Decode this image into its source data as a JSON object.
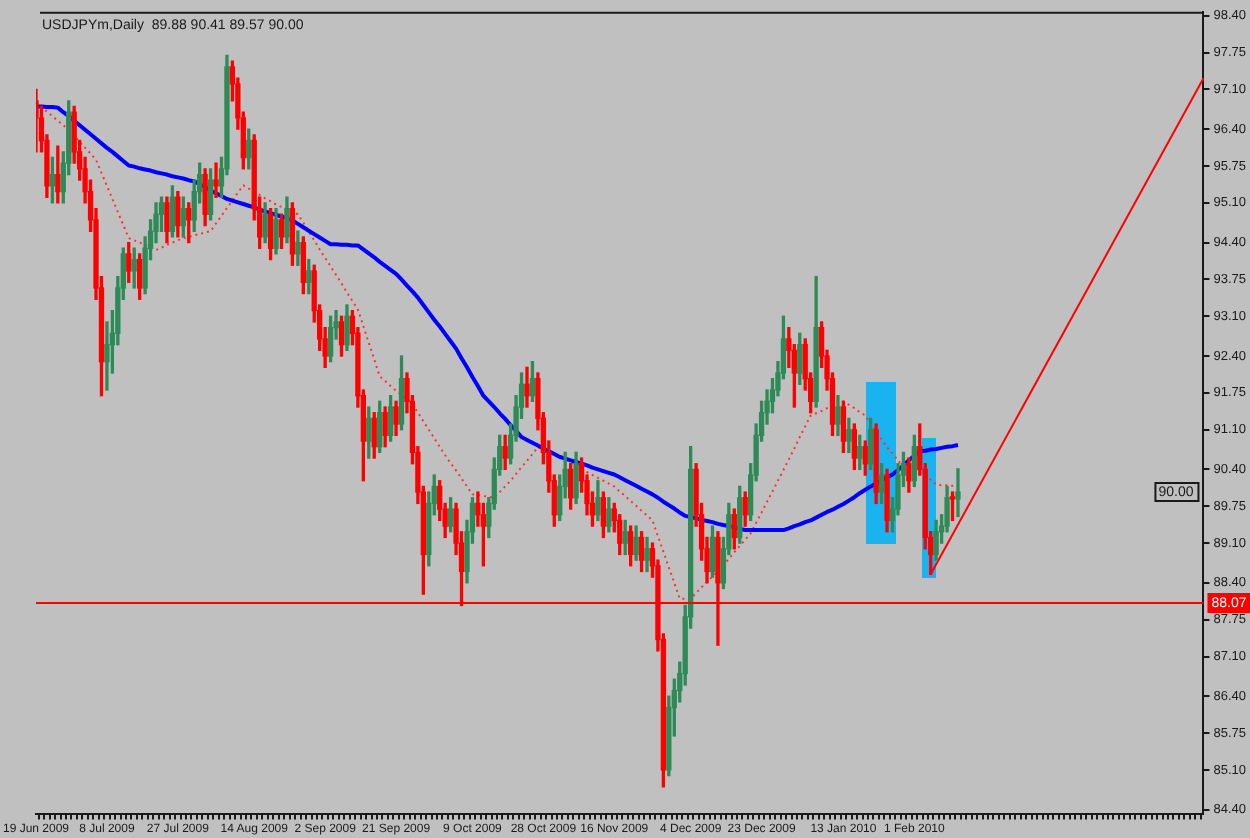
{
  "chart_data": {
    "type": "candlestick",
    "title": "USDJPYm,Daily  89.88 90.41 89.57 90.00",
    "categories": [
      "19 Jun 2009",
      null,
      null,
      null,
      null,
      null,
      null,
      null,
      null,
      null,
      null,
      null,
      null,
      "8 Jul 2009",
      null,
      null,
      null,
      null,
      null,
      null,
      null,
      null,
      null,
      null,
      null,
      null,
      "27 Jul 2009",
      null,
      null,
      null,
      null,
      null,
      null,
      null,
      null,
      null,
      null,
      null,
      null,
      null,
      "14 Aug 2009",
      null,
      null,
      null,
      null,
      null,
      null,
      null,
      null,
      null,
      null,
      null,
      null,
      "2 Sep 2009",
      null,
      null,
      null,
      null,
      null,
      null,
      null,
      null,
      null,
      null,
      null,
      null,
      "21 Sep 2009",
      null,
      null,
      null,
      null,
      null,
      null,
      null,
      null,
      null,
      null,
      null,
      null,
      null,
      "9 Oct 2009",
      null,
      null,
      null,
      null,
      null,
      null,
      null,
      null,
      null,
      null,
      null,
      null,
      "28 Oct 2009",
      null,
      null,
      null,
      null,
      null,
      null,
      null,
      null,
      null,
      null,
      null,
      null,
      "16 Nov 2009",
      null,
      null,
      null,
      null,
      null,
      null,
      null,
      null,
      null,
      null,
      null,
      null,
      null,
      "4 Dec 2009",
      null,
      null,
      null,
      null,
      null,
      null,
      null,
      null,
      null,
      null,
      null,
      null,
      "23 Dec 2009",
      null,
      null,
      null,
      null,
      null,
      null,
      null,
      null,
      null,
      null,
      null,
      null,
      null,
      null,
      "13 Jan 2010",
      null,
      null,
      null,
      null,
      null,
      null,
      null,
      null,
      null,
      null,
      null,
      null,
      "1 Feb 2010",
      null,
      null,
      null,
      null,
      null,
      null,
      null,
      null,
      null,
      null,
      null,
      null,
      null,
      null,
      null,
      null,
      null,
      null,
      null,
      null,
      null,
      null,
      null,
      null,
      null,
      null,
      null,
      null,
      null,
      null,
      null,
      null,
      null,
      null,
      null,
      null,
      null,
      null,
      null,
      null,
      null,
      null,
      null,
      null,
      null,
      null,
      null,
      null,
      null,
      null,
      null,
      null,
      null
    ],
    "ohlc": [
      [
        96.9,
        97.1,
        96.0,
        96.6
      ],
      [
        96.6,
        96.8,
        96.0,
        96.2
      ],
      [
        96.2,
        96.3,
        95.2,
        95.4
      ],
      [
        95.4,
        95.9,
        95.1,
        95.6
      ],
      [
        95.6,
        96.1,
        95.1,
        95.3
      ],
      [
        95.3,
        96.0,
        95.1,
        95.8
      ],
      [
        95.8,
        96.9,
        95.6,
        96.7
      ],
      [
        96.7,
        96.8,
        95.8,
        96.0
      ],
      [
        96.0,
        96.2,
        95.5,
        95.7
      ],
      [
        95.7,
        95.9,
        95.1,
        95.3
      ],
      [
        95.3,
        95.5,
        94.6,
        94.8
      ],
      [
        94.8,
        95.0,
        93.4,
        93.6
      ],
      [
        93.6,
        93.8,
        91.7,
        92.3
      ],
      [
        92.3,
        93.0,
        91.8,
        92.6
      ],
      [
        92.6,
        93.2,
        92.1,
        92.8
      ],
      [
        92.8,
        93.8,
        92.6,
        93.6
      ],
      [
        93.6,
        94.3,
        93.4,
        94.2
      ],
      [
        94.2,
        94.4,
        93.7,
        93.9
      ],
      [
        93.9,
        94.3,
        93.6,
        94.1
      ],
      [
        94.1,
        94.2,
        93.4,
        93.6
      ],
      [
        93.6,
        94.5,
        93.5,
        94.3
      ],
      [
        94.3,
        94.8,
        94.1,
        94.6
      ],
      [
        94.6,
        95.1,
        94.4,
        94.9
      ],
      [
        94.9,
        95.2,
        94.6,
        95.1
      ],
      [
        95.1,
        95.2,
        94.4,
        94.6
      ],
      [
        94.6,
        95.4,
        94.5,
        95.2
      ],
      [
        95.2,
        95.3,
        94.5,
        94.7
      ],
      [
        94.7,
        95.2,
        94.5,
        95.0
      ],
      [
        95.0,
        95.1,
        94.4,
        94.8
      ],
      [
        94.8,
        95.5,
        94.6,
        95.3
      ],
      [
        95.3,
        95.8,
        95.1,
        95.6
      ],
      [
        95.6,
        95.7,
        94.7,
        94.9
      ],
      [
        94.9,
        95.7,
        94.8,
        95.5
      ],
      [
        95.5,
        95.8,
        95.2,
        95.4
      ],
      [
        95.4,
        95.9,
        95.2,
        95.7
      ],
      [
        95.7,
        97.7,
        95.6,
        97.5
      ],
      [
        97.5,
        97.6,
        96.9,
        97.2
      ],
      [
        97.2,
        97.3,
        96.4,
        96.6
      ],
      [
        96.6,
        96.7,
        95.7,
        95.9
      ],
      [
        95.9,
        96.4,
        95.7,
        96.2
      ],
      [
        96.2,
        96.3,
        94.8,
        95.0
      ],
      [
        95.0,
        95.2,
        94.3,
        94.5
      ],
      [
        94.5,
        95.1,
        94.4,
        94.9
      ],
      [
        94.9,
        95.0,
        94.1,
        94.3
      ],
      [
        94.3,
        95.0,
        94.2,
        94.8
      ],
      [
        94.8,
        94.9,
        94.3,
        94.5
      ],
      [
        94.5,
        95.2,
        94.4,
        95.0
      ],
      [
        95.0,
        95.1,
        94.0,
        94.2
      ],
      [
        94.2,
        94.6,
        94.0,
        94.4
      ],
      [
        94.4,
        94.5,
        93.5,
        93.7
      ],
      [
        93.7,
        94.1,
        93.5,
        93.9
      ],
      [
        93.9,
        94.0,
        93.0,
        93.2
      ],
      [
        93.2,
        93.3,
        92.5,
        92.7
      ],
      [
        92.7,
        92.9,
        92.2,
        92.4
      ],
      [
        92.4,
        93.1,
        92.3,
        92.9
      ],
      [
        92.9,
        93.2,
        92.7,
        93.0
      ],
      [
        93.0,
        93.1,
        92.4,
        92.6
      ],
      [
        92.6,
        93.3,
        92.5,
        93.1
      ],
      [
        93.1,
        93.2,
        92.6,
        92.8
      ],
      [
        92.8,
        92.9,
        91.5,
        91.7
      ],
      [
        91.7,
        91.8,
        90.2,
        90.9
      ],
      [
        90.9,
        91.5,
        90.6,
        91.3
      ],
      [
        91.3,
        91.4,
        90.6,
        90.8
      ],
      [
        90.8,
        91.6,
        90.7,
        91.4
      ],
      [
        91.4,
        91.5,
        90.8,
        91.0
      ],
      [
        91.0,
        91.7,
        90.9,
        91.5
      ],
      [
        91.5,
        91.6,
        91.0,
        91.2
      ],
      [
        91.2,
        92.4,
        91.1,
        92.0
      ],
      [
        92.0,
        92.1,
        91.4,
        91.6
      ],
      [
        91.6,
        91.7,
        90.5,
        90.7
      ],
      [
        90.7,
        90.8,
        89.8,
        90.0
      ],
      [
        90.0,
        90.1,
        88.2,
        88.9
      ],
      [
        88.9,
        90.0,
        88.7,
        89.8
      ],
      [
        89.8,
        90.3,
        89.6,
        90.1
      ],
      [
        90.1,
        90.2,
        89.5,
        89.7
      ],
      [
        89.7,
        89.8,
        89.2,
        89.4
      ],
      [
        89.4,
        89.9,
        89.3,
        89.7
      ],
      [
        89.7,
        89.8,
        88.9,
        89.1
      ],
      [
        89.1,
        89.3,
        88.0,
        88.6
      ],
      [
        88.6,
        89.5,
        88.4,
        89.3
      ],
      [
        89.3,
        89.9,
        89.1,
        89.8
      ],
      [
        89.8,
        90.0,
        89.4,
        89.6
      ],
      [
        89.6,
        89.8,
        88.7,
        89.4
      ],
      [
        89.4,
        89.9,
        89.2,
        89.8
      ],
      [
        89.8,
        90.6,
        89.7,
        90.4
      ],
      [
        90.4,
        91.0,
        90.3,
        90.8
      ],
      [
        90.8,
        91.0,
        90.4,
        90.6
      ],
      [
        90.6,
        91.2,
        90.5,
        91.0
      ],
      [
        91.0,
        91.7,
        90.9,
        91.5
      ],
      [
        91.5,
        92.1,
        91.3,
        91.9
      ],
      [
        91.9,
        92.2,
        91.5,
        91.7
      ],
      [
        91.7,
        92.3,
        91.6,
        92.0
      ],
      [
        92.0,
        92.1,
        91.1,
        91.3
      ],
      [
        91.3,
        91.4,
        90.5,
        90.7
      ],
      [
        90.7,
        90.9,
        90.0,
        90.2
      ],
      [
        90.2,
        90.3,
        89.4,
        89.6
      ],
      [
        89.6,
        90.3,
        89.5,
        90.1
      ],
      [
        90.1,
        90.7,
        89.9,
        90.4
      ],
      [
        90.4,
        90.5,
        89.7,
        89.9
      ],
      [
        89.9,
        90.7,
        89.8,
        90.5
      ],
      [
        90.5,
        90.6,
        90.0,
        90.2
      ],
      [
        90.2,
        90.3,
        89.6,
        89.8
      ],
      [
        89.8,
        90.0,
        89.4,
        89.6
      ],
      [
        89.6,
        90.2,
        89.5,
        89.9
      ],
      [
        89.9,
        90.0,
        89.2,
        89.4
      ],
      [
        89.4,
        89.9,
        89.3,
        89.7
      ],
      [
        89.7,
        89.8,
        89.3,
        89.5
      ],
      [
        89.5,
        89.6,
        88.9,
        89.1
      ],
      [
        89.1,
        89.5,
        88.9,
        89.3
      ],
      [
        89.3,
        89.4,
        88.7,
        88.9
      ],
      [
        88.9,
        89.4,
        88.8,
        89.2
      ],
      [
        89.2,
        89.3,
        88.6,
        88.8
      ],
      [
        88.8,
        89.2,
        88.6,
        89.0
      ],
      [
        89.0,
        89.1,
        88.5,
        88.7
      ],
      [
        88.7,
        88.8,
        87.2,
        87.4
      ],
      [
        87.4,
        87.5,
        84.8,
        85.1
      ],
      [
        85.1,
        86.4,
        85.0,
        86.2
      ],
      [
        86.2,
        86.7,
        85.7,
        86.5
      ],
      [
        86.5,
        87.0,
        86.3,
        86.8
      ],
      [
        86.8,
        88.0,
        86.6,
        87.8
      ],
      [
        87.8,
        90.8,
        87.6,
        90.4
      ],
      [
        90.4,
        90.5,
        89.4,
        89.6
      ],
      [
        89.6,
        89.8,
        88.8,
        89.0
      ],
      [
        89.0,
        89.2,
        88.4,
        88.6
      ],
      [
        88.6,
        89.4,
        88.5,
        89.2
      ],
      [
        89.2,
        89.3,
        87.3,
        88.4
      ],
      [
        88.4,
        89.2,
        88.3,
        89.0
      ],
      [
        89.0,
        89.8,
        88.9,
        89.6
      ],
      [
        89.6,
        89.7,
        89.0,
        89.2
      ],
      [
        89.2,
        90.1,
        89.1,
        89.9
      ],
      [
        89.9,
        90.0,
        89.4,
        89.6
      ],
      [
        89.6,
        90.5,
        89.5,
        90.3
      ],
      [
        90.3,
        91.2,
        90.2,
        91.0
      ],
      [
        91.0,
        91.6,
        90.9,
        91.4
      ],
      [
        91.4,
        91.8,
        91.2,
        91.6
      ],
      [
        91.6,
        92.0,
        91.4,
        91.8
      ],
      [
        91.8,
        92.3,
        91.7,
        92.1
      ],
      [
        92.1,
        93.1,
        92.0,
        92.7
      ],
      [
        92.7,
        92.9,
        92.2,
        92.5
      ],
      [
        92.5,
        92.6,
        91.5,
        92.1
      ],
      [
        92.1,
        92.8,
        91.9,
        92.6
      ],
      [
        92.6,
        92.7,
        91.8,
        92.0
      ],
      [
        92.0,
        92.1,
        91.4,
        91.6
      ],
      [
        91.6,
        93.8,
        91.5,
        92.9
      ],
      [
        92.9,
        93.0,
        92.2,
        92.4
      ],
      [
        92.4,
        92.5,
        91.8,
        92.0
      ],
      [
        92.0,
        92.1,
        91.0,
        91.2
      ],
      [
        91.2,
        91.7,
        91.0,
        91.5
      ],
      [
        91.5,
        91.6,
        90.7,
        90.9
      ],
      [
        90.9,
        91.3,
        90.7,
        91.1
      ],
      [
        91.1,
        91.2,
        90.4,
        90.6
      ],
      [
        90.6,
        91.0,
        90.4,
        90.8
      ],
      [
        90.8,
        90.9,
        90.3,
        90.5
      ],
      [
        90.5,
        91.3,
        90.4,
        91.1
      ],
      [
        91.1,
        91.2,
        89.8,
        90.0
      ],
      [
        90.0,
        90.5,
        89.8,
        90.3
      ],
      [
        90.3,
        90.4,
        89.3,
        89.5
      ],
      [
        89.5,
        89.9,
        89.3,
        89.7
      ],
      [
        89.7,
        90.5,
        89.6,
        90.3
      ],
      [
        90.3,
        90.7,
        90.1,
        90.5
      ],
      [
        90.5,
        90.6,
        90.0,
        90.2
      ],
      [
        90.2,
        91.0,
        90.1,
        90.8
      ],
      [
        90.8,
        91.2,
        90.3,
        90.4
      ],
      [
        90.4,
        90.5,
        89.0,
        89.2
      ],
      [
        89.2,
        89.3,
        88.55,
        88.9
      ],
      [
        88.9,
        89.5,
        88.8,
        89.3
      ],
      [
        89.3,
        89.6,
        89.1,
        89.4
      ],
      [
        89.4,
        90.1,
        89.3,
        89.9
      ],
      [
        89.9,
        90.0,
        89.5,
        89.88
      ],
      [
        89.88,
        90.41,
        89.57,
        90.0
      ],
      null,
      null,
      null,
      null,
      null,
      null,
      null,
      null,
      null,
      null,
      null,
      null,
      null,
      null,
      null,
      null,
      null,
      null,
      null,
      null,
      null,
      null,
      null,
      null,
      null,
      null,
      null,
      null,
      null,
      null,
      null,
      null,
      null,
      null,
      null,
      null,
      null,
      null,
      null,
      null,
      null,
      null,
      null,
      null,
      null
    ],
    "colors": [
      "#ff0000",
      "#ff0000",
      "#ff0000",
      "#2e8b57",
      "#ff0000",
      "#2e8b57",
      "#2e8b57",
      "#ff0000",
      "#ff0000",
      "#ff0000",
      "#ff0000",
      "#ff0000",
      "#ff0000",
      "#2e8b57",
      "#2e8b57",
      "#2e8b57",
      "#2e8b57",
      "#ff0000",
      "#2e8b57",
      "#ff0000",
      "#2e8b57",
      "#2e8b57",
      "#2e8b57",
      "#2e8b57",
      "#ff0000",
      "#2e8b57",
      "#ff0000",
      "#2e8b57",
      "#ff0000",
      "#2e8b57",
      "#2e8b57",
      "#ff0000",
      "#2e8b57",
      "#ff0000",
      "#2e8b57",
      "#2e8b57",
      "#ff0000",
      "#ff0000",
      "#ff0000",
      "#2e8b57",
      "#ff0000",
      "#ff0000",
      "#2e8b57",
      "#ff0000",
      "#2e8b57",
      "#ff0000",
      "#2e8b57",
      "#ff0000",
      "#2e8b57",
      "#ff0000",
      "#2e8b57",
      "#ff0000",
      "#ff0000",
      "#ff0000",
      "#2e8b57",
      "#2e8b57",
      "#ff0000",
      "#2e8b57",
      "#ff0000",
      "#ff0000",
      "#ff0000",
      "#2e8b57",
      "#ff0000",
      "#2e8b57",
      "#ff0000",
      "#2e8b57",
      "#ff0000",
      "#2e8b57",
      "#ff0000",
      "#ff0000",
      "#ff0000",
      "#ff0000",
      "#2e8b57",
      "#2e8b57",
      "#ff0000",
      "#ff0000",
      "#2e8b57",
      "#ff0000",
      "#ff0000",
      "#2e8b57",
      "#2e8b57",
      "#ff0000",
      "#ff0000",
      "#2e8b57",
      "#2e8b57",
      "#2e8b57",
      "#ff0000",
      "#2e8b57",
      "#2e8b57",
      "#2e8b57",
      "#ff0000",
      "#2e8b57",
      "#ff0000",
      "#ff0000",
      "#ff0000",
      "#ff0000",
      "#2e8b57",
      "#2e8b57",
      "#ff0000",
      "#2e8b57",
      "#ff0000",
      "#ff0000",
      "#ff0000",
      "#2e8b57",
      "#ff0000",
      "#2e8b57",
      "#ff0000",
      "#ff0000",
      "#2e8b57",
      "#ff0000",
      "#2e8b57",
      "#ff0000",
      "#2e8b57",
      "#ff0000",
      "#ff0000",
      "#ff0000",
      "#2e8b57",
      "#2e8b57",
      "#2e8b57",
      "#2e8b57",
      "#2e8b57",
      "#ff0000",
      "#ff0000",
      "#ff0000",
      "#2e8b57",
      "#ff0000",
      "#2e8b57",
      "#2e8b57",
      "#ff0000",
      "#2e8b57",
      "#ff0000",
      "#2e8b57",
      "#2e8b57",
      "#2e8b57",
      "#2e8b57",
      "#2e8b57",
      "#2e8b57",
      "#2e8b57",
      "#ff0000",
      "#ff0000",
      "#2e8b57",
      "#ff0000",
      "#ff0000",
      "#2e8b57",
      "#ff0000",
      "#ff0000",
      "#ff0000",
      "#2e8b57",
      "#ff0000",
      "#2e8b57",
      "#ff0000",
      "#2e8b57",
      "#ff0000",
      "#2e8b57",
      "#ff0000",
      "#2e8b57",
      "#ff0000",
      "#2e8b57",
      "#2e8b57",
      "#2e8b57",
      "#ff0000",
      "#2e8b57",
      "#ff0000",
      "#ff0000",
      "#ff0000",
      "#2e8b57",
      "#2e8b57",
      "#2e8b57",
      "#ff0000",
      "#2e8b57",
      null,
      null,
      null,
      null,
      null,
      null,
      null,
      null,
      null,
      null,
      null,
      null,
      null,
      null,
      null,
      null,
      null,
      null,
      null,
      null,
      null,
      null,
      null,
      null,
      null,
      null,
      null,
      null,
      null,
      null,
      null,
      null,
      null,
      null,
      null,
      null,
      null,
      null,
      null,
      null,
      null,
      null,
      null,
      null,
      null
    ],
    "series": [
      {
        "type": "line",
        "color": "#0000ff",
        "values": [
          96.8,
          96.8,
          96.79,
          96.79,
          96.78,
          96.7,
          96.63,
          96.55,
          96.47,
          96.39,
          96.31,
          96.23,
          96.15,
          96.07,
          96.0,
          95.92,
          95.84,
          95.76,
          95.74,
          95.71,
          95.69,
          95.67,
          95.64,
          95.62,
          95.6,
          95.57,
          95.55,
          95.53,
          95.5,
          95.48,
          95.43,
          95.38,
          95.32,
          95.27,
          95.22,
          95.17,
          95.14,
          95.11,
          95.08,
          95.05,
          95.02,
          94.98,
          94.95,
          94.92,
          94.89,
          94.86,
          94.83,
          94.79,
          94.73,
          94.67,
          94.61,
          94.55,
          94.49,
          94.43,
          94.37,
          94.37,
          94.36,
          94.36,
          94.35,
          94.35,
          94.28,
          94.21,
          94.14,
          94.06,
          93.99,
          93.92,
          93.85,
          93.75,
          93.64,
          93.54,
          93.43,
          93.3,
          93.17,
          93.04,
          92.92,
          92.79,
          92.66,
          92.53,
          92.36,
          92.2,
          92.03,
          91.87,
          91.7,
          91.6,
          91.5,
          91.39,
          91.29,
          91.18,
          91.08,
          90.97,
          90.92,
          90.87,
          90.82,
          90.77,
          90.72,
          90.67,
          90.62,
          90.59,
          90.56,
          90.53,
          90.5,
          90.47,
          90.43,
          90.4,
          90.37,
          90.34,
          90.31,
          90.26,
          90.21,
          90.16,
          90.11,
          90.06,
          90.01,
          89.96,
          89.9,
          89.83,
          89.77,
          89.71,
          89.64,
          89.58,
          89.56,
          89.54,
          89.51,
          89.49,
          89.47,
          89.44,
          89.42,
          89.4,
          89.38,
          89.35,
          89.33,
          89.33,
          89.33,
          89.33,
          89.33,
          89.33,
          89.33,
          89.33,
          89.36,
          89.4,
          89.43,
          89.47,
          89.5,
          89.55,
          89.6,
          89.65,
          89.69,
          89.74,
          89.79,
          89.85,
          89.91,
          89.98,
          90.04,
          90.1,
          90.15,
          null,
          90.26,
          90.31,
          90.39,
          90.47,
          90.56,
          90.64,
          90.72,
          90.73,
          90.75,
          90.76,
          90.78,
          90.8,
          90.81,
          90.83,
          null,
          null,
          null,
          null,
          null,
          null,
          null,
          null,
          null,
          null,
          null,
          null,
          null,
          null,
          null,
          null,
          null,
          null,
          null,
          null,
          null,
          null,
          null,
          null,
          null,
          null,
          null,
          null,
          null,
          null,
          null,
          null,
          null,
          null,
          null,
          null,
          null,
          null,
          null,
          null,
          null,
          null,
          null,
          null,
          null
        ]
      },
      {
        "type": "line",
        "color": "#ff3030",
        "line_style": "dotted",
        "values": [
          96.87,
          96.79,
          96.71,
          96.63,
          96.55,
          96.47,
          96.39,
          96.28,
          96.18,
          96.07,
          95.97,
          95.86,
          95.63,
          95.4,
          95.17,
          94.94,
          94.71,
          94.48,
          94.44,
          94.4,
          94.36,
          94.31,
          94.27,
          94.31,
          94.36,
          94.4,
          94.44,
          94.48,
          94.5,
          94.53,
          94.55,
          94.58,
          94.6,
          94.74,
          94.87,
          95.01,
          95.14,
          95.28,
          95.41,
          95.35,
          95.3,
          95.24,
          95.18,
          95.13,
          95.07,
          95.03,
          94.99,
          94.94,
          94.9,
          94.75,
          94.59,
          94.44,
          94.28,
          94.13,
          93.98,
          93.83,
          93.68,
          93.52,
          93.37,
          93.22,
          92.93,
          92.63,
          92.34,
          92.04,
          91.96,
          91.87,
          91.79,
          91.71,
          91.63,
          91.55,
          91.4,
          91.25,
          91.1,
          90.95,
          90.8,
          90.65,
          90.51,
          90.38,
          90.24,
          90.1,
          89.96,
          89.95,
          89.93,
          89.92,
          89.9,
          90.0,
          90.1,
          90.2,
          90.32,
          90.44,
          90.55,
          90.67,
          90.79,
          90.75,
          90.72,
          90.68,
          90.65,
          90.59,
          90.53,
          90.46,
          90.4,
          90.35,
          90.3,
          90.25,
          90.2,
          90.15,
          90.1,
          90.01,
          89.93,
          89.84,
          89.76,
          89.67,
          89.59,
          89.5,
          89.22,
          88.95,
          88.67,
          88.4,
          88.12,
          88.12,
          88.12,
          88.22,
          88.32,
          88.42,
          88.51,
          88.61,
          88.71,
          88.82,
          88.94,
          89.05,
          89.16,
          89.27,
          89.46,
          89.64,
          89.83,
          90.01,
          90.2,
          90.39,
          90.58,
          90.77,
          90.97,
          91.16,
          91.35,
          91.39,
          91.43,
          91.48,
          91.52,
          91.56,
          91.6,
          91.54,
          91.48,
          91.41,
          91.35,
          91.21,
          91.07,
          90.93,
          90.79,
          90.68,
          90.56,
          90.45,
          90.41,
          90.38,
          90.34,
          90.3,
          90.22,
          90.13,
          90.12,
          90.12,
          90.11,
          90.1,
          null,
          null,
          null,
          null,
          null,
          null,
          null,
          null,
          null,
          null,
          null,
          null,
          null,
          null,
          null,
          null,
          null,
          null,
          null,
          null,
          null,
          null,
          null,
          null,
          null,
          null,
          null,
          null,
          null,
          null,
          null,
          null,
          null,
          null,
          null,
          null,
          null,
          null,
          null,
          null,
          null,
          null,
          null,
          null,
          null
        ]
      },
      {
        "type": "line",
        "color": "#ff0000",
        "values": [
          null,
          null,
          null,
          null,
          null,
          null,
          null,
          null,
          null,
          null,
          null,
          null,
          null,
          null,
          null,
          null,
          null,
          null,
          null,
          null,
          null,
          null,
          null,
          null,
          null,
          null,
          null,
          null,
          null,
          null,
          null,
          null,
          null,
          null,
          null,
          null,
          null,
          null,
          null,
          null,
          null,
          null,
          null,
          null,
          null,
          null,
          null,
          null,
          null,
          null,
          null,
          null,
          null,
          null,
          null,
          null,
          null,
          null,
          null,
          null,
          null,
          null,
          null,
          null,
          null,
          null,
          null,
          null,
          null,
          null,
          null,
          null,
          null,
          null,
          null,
          null,
          null,
          null,
          null,
          null,
          null,
          null,
          null,
          null,
          null,
          null,
          null,
          null,
          null,
          null,
          null,
          null,
          null,
          null,
          null,
          null,
          null,
          null,
          null,
          null,
          null,
          null,
          null,
          null,
          null,
          null,
          null,
          null,
          null,
          null,
          null,
          null,
          null,
          null,
          null,
          null,
          null,
          null,
          null,
          null,
          null,
          null,
          null,
          null,
          null,
          null,
          null,
          null,
          null,
          null,
          null,
          null,
          null,
          null,
          null,
          null,
          null,
          null,
          null,
          null,
          null,
          null,
          null,
          null,
          null,
          null,
          null,
          null,
          null,
          null,
          null,
          null,
          null,
          null,
          null,
          null,
          null,
          null,
          null,
          null,
          null,
          null,
          null,
          null,
          88.55,
          null,
          null,
          null,
          null,
          null,
          null,
          null,
          null,
          null,
          null,
          null,
          null,
          null,
          null,
          null,
          null,
          null,
          null,
          null,
          null,
          null,
          null,
          null,
          null,
          null,
          null,
          null,
          null,
          null,
          null,
          null,
          null,
          null,
          null,
          null,
          null,
          null,
          null,
          null,
          null,
          null,
          null,
          null,
          null,
          null,
          null,
          null,
          null,
          null,
          97.3
        ]
      }
    ],
    "ylim": [
      84.33,
      98.47
    ],
    "yticks": [
      {
        "value": 84.4,
        "label": "84.40"
      },
      {
        "value": 85.1,
        "label": "85.10"
      },
      {
        "value": 85.75,
        "label": "85.75"
      },
      {
        "value": 86.4,
        "label": "86.40"
      },
      {
        "value": 87.1,
        "label": "87.10"
      },
      {
        "value": 87.75,
        "label": "87.75"
      },
      {
        "value": 88.4,
        "label": "88.40"
      },
      {
        "value": 89.1,
        "label": "89.10"
      },
      {
        "value": 89.75,
        "label": "89.75"
      },
      {
        "value": 90.4,
        "label": "90.40"
      },
      {
        "value": 91.1,
        "label": "91.10"
      },
      {
        "value": 91.75,
        "label": "91.75"
      },
      {
        "value": 92.4,
        "label": "92.40"
      },
      {
        "value": 93.1,
        "label": "93.10"
      },
      {
        "value": 93.75,
        "label": "93.75"
      },
      {
        "value": 94.4,
        "label": "94.40"
      },
      {
        "value": 95.1,
        "label": "95.10"
      },
      {
        "value": 95.75,
        "label": "95.75"
      },
      {
        "value": 96.4,
        "label": "96.40"
      },
      {
        "value": 97.1,
        "label": "97.10"
      },
      {
        "value": 97.75,
        "label": "97.75"
      },
      {
        "value": 98.4,
        "label": "98.40"
      }
    ],
    "ref_lines": [
      {
        "axis": "y",
        "value": 88.07,
        "label": "88.07",
        "color": "#ff0000"
      }
    ],
    "annotations": [
      {
        "text": "90.00",
        "y": 90.0
      }
    ]
  }
}
